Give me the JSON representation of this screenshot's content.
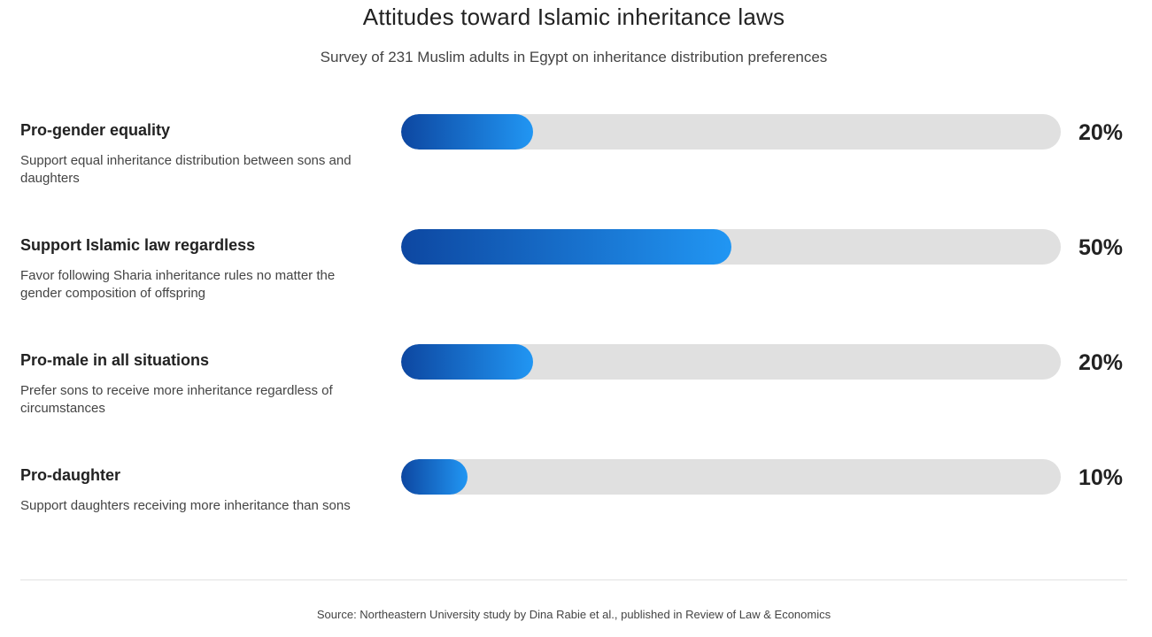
{
  "chart_data": {
    "type": "bar",
    "orientation": "horizontal",
    "title": "Attitudes toward Islamic inheritance laws",
    "subtitle": "Survey of 231 Muslim adults in Egypt on inheritance distribution preferences",
    "categories": [
      "Pro-gender equality",
      "Support Islamic law regardless",
      "Pro-male in all situations",
      "Pro-daughter"
    ],
    "values": [
      20,
      50,
      20,
      10
    ],
    "xlim": [
      0,
      100
    ],
    "unit": "%",
    "items": [
      {
        "label": "Pro-gender equality",
        "description": "Support equal inheritance distribution between sons and daughters",
        "value": 20,
        "value_label": "20%"
      },
      {
        "label": "Support Islamic law regardless",
        "description": "Favor following Sharia inheritance rules no matter the gender composition of offspring",
        "value": 50,
        "value_label": "50%"
      },
      {
        "label": "Pro-male in all situations",
        "description": "Prefer sons to receive more inheritance regardless of circumstances",
        "value": 20,
        "value_label": "20%"
      },
      {
        "label": "Pro-daughter",
        "description": "Support daughters receiving more inheritance than sons",
        "value": 10,
        "value_label": "10%"
      }
    ],
    "source": "Source: Northeastern University study by Dina Rabie et al., published in Review of Law & Economics"
  },
  "colors": {
    "bar_gradient_start": "#0d47a1",
    "bar_gradient_end": "#2196f3",
    "track": "#e0e0e0"
  }
}
